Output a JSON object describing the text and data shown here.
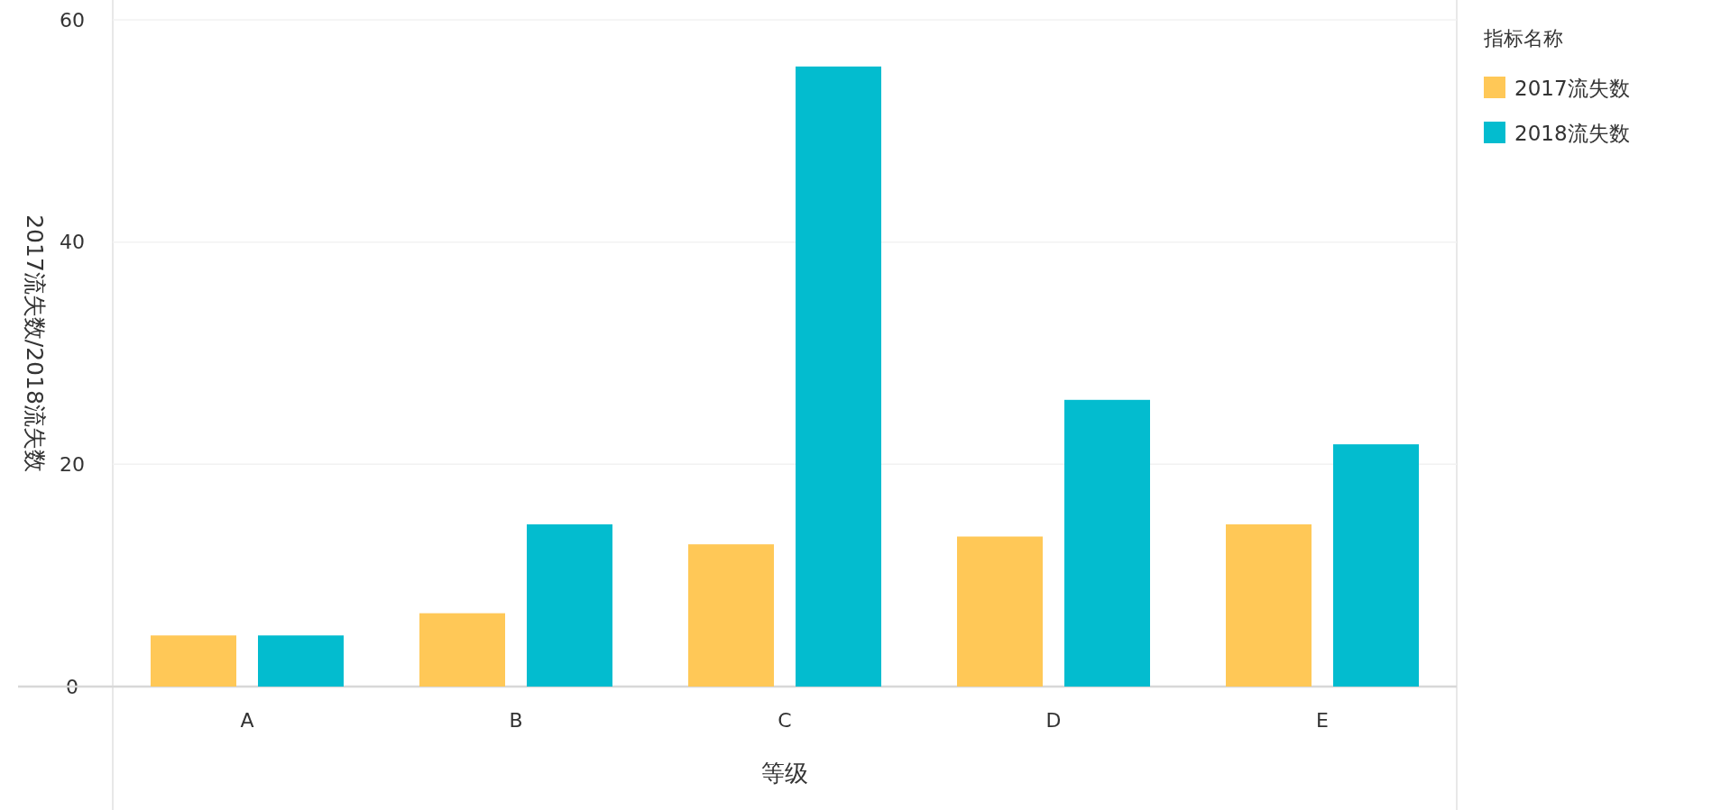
{
  "chart_data": {
    "type": "bar",
    "xlabel": "等级",
    "ylabel": "2017流失数/2018流失数",
    "legend_title": "指标名称",
    "legend": "right",
    "grid": "y",
    "categories": [
      "A",
      "B",
      "C",
      "D",
      "E"
    ],
    "series": [
      {
        "name": "2017流失数",
        "color": "#ffc857",
        "values": [
          4.6,
          6.6,
          12.8,
          13.5,
          14.6
        ]
      },
      {
        "name": "2018流失数",
        "color": "#03bccf",
        "values": [
          4.6,
          14.6,
          55.8,
          25.8,
          21.8
        ]
      }
    ],
    "ylim": [
      0,
      60
    ],
    "yticks": [
      0,
      20,
      40,
      60
    ]
  }
}
